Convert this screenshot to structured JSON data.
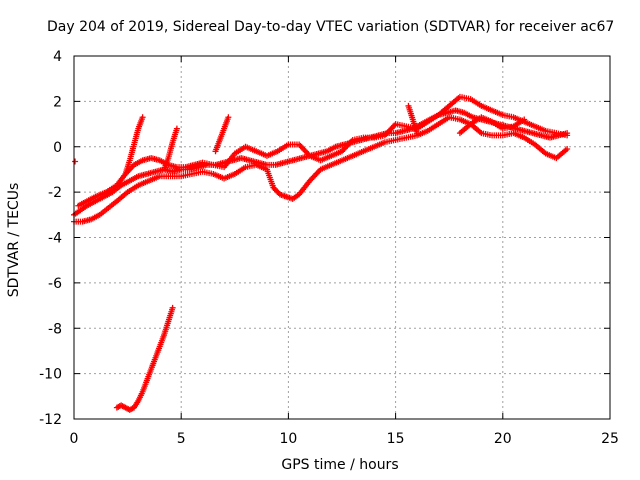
{
  "chart_data": {
    "type": "scatter",
    "title": "Day 204 of 2019, Sidereal Day-to-day VTEC variation (SDTVAR) for receiver ac67",
    "xlabel": "GPS time / hours",
    "ylabel": "SDTVAR / TECUs",
    "xlim": [
      0,
      25
    ],
    "ylim": [
      -12,
      4
    ],
    "xticks": [
      "0",
      "5",
      "10",
      "15",
      "20",
      "25"
    ],
    "yticks": [
      "4",
      "2",
      "0",
      "-2",
      "-4",
      "-6",
      "-8",
      "-10",
      "-12"
    ],
    "grid": true,
    "marker": "+",
    "color": "#ff0000",
    "series": [
      {
        "name": "main-trend",
        "x": [
          0.0,
          0.3,
          0.6,
          1.0,
          1.4,
          1.8,
          2.2,
          2.6,
          3.0,
          3.4,
          3.8,
          4.2,
          4.6,
          5.0,
          5.4,
          5.8,
          6.2,
          6.6,
          7.0,
          7.4,
          7.8,
          8.2,
          8.6,
          9.0,
          9.4,
          9.8,
          10.2,
          10.6,
          11.0,
          11.4,
          11.8,
          12.2,
          12.6,
          13.0,
          13.4,
          13.8,
          14.2,
          14.6,
          15.0,
          15.4,
          15.8,
          16.2,
          16.6,
          17.0,
          17.4,
          17.8,
          18.2,
          18.6,
          19.0,
          19.4,
          19.8,
          20.2,
          20.6,
          21.0,
          21.4,
          21.8,
          22.2,
          22.6,
          23.0
        ],
        "y": [
          -3.0,
          -2.8,
          -2.6,
          -2.4,
          -2.2,
          -2.0,
          -1.7,
          -1.5,
          -1.3,
          -1.2,
          -1.1,
          -1.0,
          -1.1,
          -1.0,
          -1.0,
          -0.9,
          -0.8,
          -0.8,
          -0.7,
          -0.6,
          -0.5,
          -0.6,
          -0.7,
          -0.8,
          -0.8,
          -0.7,
          -0.6,
          -0.5,
          -0.4,
          -0.3,
          -0.2,
          0.0,
          0.1,
          0.2,
          0.3,
          0.4,
          0.5,
          0.6,
          0.6,
          0.7,
          0.8,
          1.0,
          1.2,
          1.4,
          1.5,
          1.6,
          1.5,
          1.3,
          1.2,
          1.1,
          1.0,
          0.9,
          0.8,
          0.7,
          0.6,
          0.5,
          0.4,
          0.5,
          0.6
        ]
      },
      {
        "name": "upper-track",
        "x": [
          0.2,
          0.6,
          1.0,
          1.5,
          2.0,
          2.4,
          2.8,
          3.2,
          3.6,
          4.0,
          4.4,
          4.8,
          5.2,
          5.6,
          6.0,
          6.5,
          7.0,
          7.5,
          8.0,
          8.5,
          9.0,
          9.5,
          10.0,
          10.5,
          11.0,
          11.5,
          12.0,
          12.5,
          13.0,
          13.5,
          14.0,
          14.5,
          15.0,
          15.5,
          16.0,
          16.5,
          17.0,
          17.5,
          18.0,
          18.5,
          19.0,
          19.5,
          20.0,
          20.5,
          21.0,
          21.5,
          22.0,
          22.5,
          23.0
        ],
        "y": [
          -2.6,
          -2.4,
          -2.2,
          -2.0,
          -1.7,
          -1.2,
          -0.8,
          -0.6,
          -0.5,
          -0.6,
          -0.8,
          -0.9,
          -0.9,
          -0.8,
          -0.7,
          -0.8,
          -0.9,
          -0.3,
          0.0,
          -0.2,
          -0.4,
          -0.2,
          0.1,
          0.1,
          -0.4,
          -0.6,
          -0.4,
          -0.2,
          0.3,
          0.4,
          0.4,
          0.5,
          1.0,
          0.9,
          0.8,
          1.1,
          1.4,
          1.8,
          2.2,
          2.1,
          1.8,
          1.6,
          1.4,
          1.3,
          1.1,
          0.9,
          0.7,
          0.6,
          0.5
        ]
      },
      {
        "name": "lower-track",
        "x": [
          0.0,
          0.4,
          0.8,
          1.2,
          1.6,
          2.0,
          2.5,
          3.0,
          3.5,
          4.0,
          4.5,
          5.0,
          5.5,
          6.0,
          6.5,
          7.0,
          7.5,
          8.0,
          8.5,
          9.0,
          9.3,
          9.6,
          9.9,
          10.2,
          10.5,
          11.0,
          11.5,
          12.0,
          12.5,
          13.0,
          13.5,
          14.0,
          14.5,
          15.0,
          15.5,
          16.0,
          16.5,
          17.0,
          17.5,
          18.0,
          18.5,
          19.0,
          19.5,
          20.0,
          20.5,
          21.0,
          21.5,
          22.0,
          22.5,
          23.0
        ],
        "y": [
          -3.3,
          -3.3,
          -3.2,
          -3.0,
          -2.7,
          -2.4,
          -2.0,
          -1.7,
          -1.5,
          -1.3,
          -1.3,
          -1.3,
          -1.2,
          -1.1,
          -1.2,
          -1.4,
          -1.2,
          -0.9,
          -0.8,
          -1.0,
          -1.8,
          -2.1,
          -2.2,
          -2.3,
          -2.1,
          -1.5,
          -1.0,
          -0.8,
          -0.6,
          -0.4,
          -0.2,
          0.0,
          0.2,
          0.3,
          0.4,
          0.5,
          0.7,
          1.0,
          1.3,
          1.2,
          1.0,
          0.6,
          0.5,
          0.5,
          0.6,
          0.4,
          0.1,
          -0.3,
          -0.5,
          -0.1
        ]
      },
      {
        "name": "spike-3h",
        "x": [
          2.4,
          2.6,
          2.8,
          3.0,
          3.2
        ],
        "y": [
          -1.2,
          -0.6,
          0.1,
          0.8,
          1.3
        ]
      },
      {
        "name": "spike-5h",
        "x": [
          4.2,
          4.4,
          4.6,
          4.8
        ],
        "y": [
          -1.0,
          -0.5,
          0.2,
          0.8
        ]
      },
      {
        "name": "spike-7h",
        "x": [
          6.6,
          6.8,
          7.0,
          7.2
        ],
        "y": [
          -0.2,
          0.3,
          0.8,
          1.3
        ]
      },
      {
        "name": "spike-16h",
        "x": [
          15.6,
          15.8,
          16.0
        ],
        "y": [
          1.8,
          1.2,
          0.6
        ]
      },
      {
        "name": "hump-19h",
        "x": [
          18.0,
          18.5,
          19.0,
          19.5,
          20.0,
          20.5,
          21.0
        ],
        "y": [
          0.6,
          1.0,
          1.3,
          1.1,
          0.8,
          0.9,
          1.2
        ]
      },
      {
        "name": "isolated-point",
        "x": [
          0.05
        ],
        "y": [
          -0.65
        ]
      },
      {
        "name": "low-excursion",
        "x": [
          2.0,
          2.2,
          2.4,
          2.6,
          2.8,
          3.0,
          3.2,
          3.4,
          3.6,
          3.8,
          4.0,
          4.2,
          4.4,
          4.6
        ],
        "y": [
          -11.5,
          -11.4,
          -11.5,
          -11.6,
          -11.5,
          -11.2,
          -10.8,
          -10.3,
          -9.8,
          -9.3,
          -8.8,
          -8.3,
          -7.7,
          -7.1
        ]
      }
    ]
  }
}
